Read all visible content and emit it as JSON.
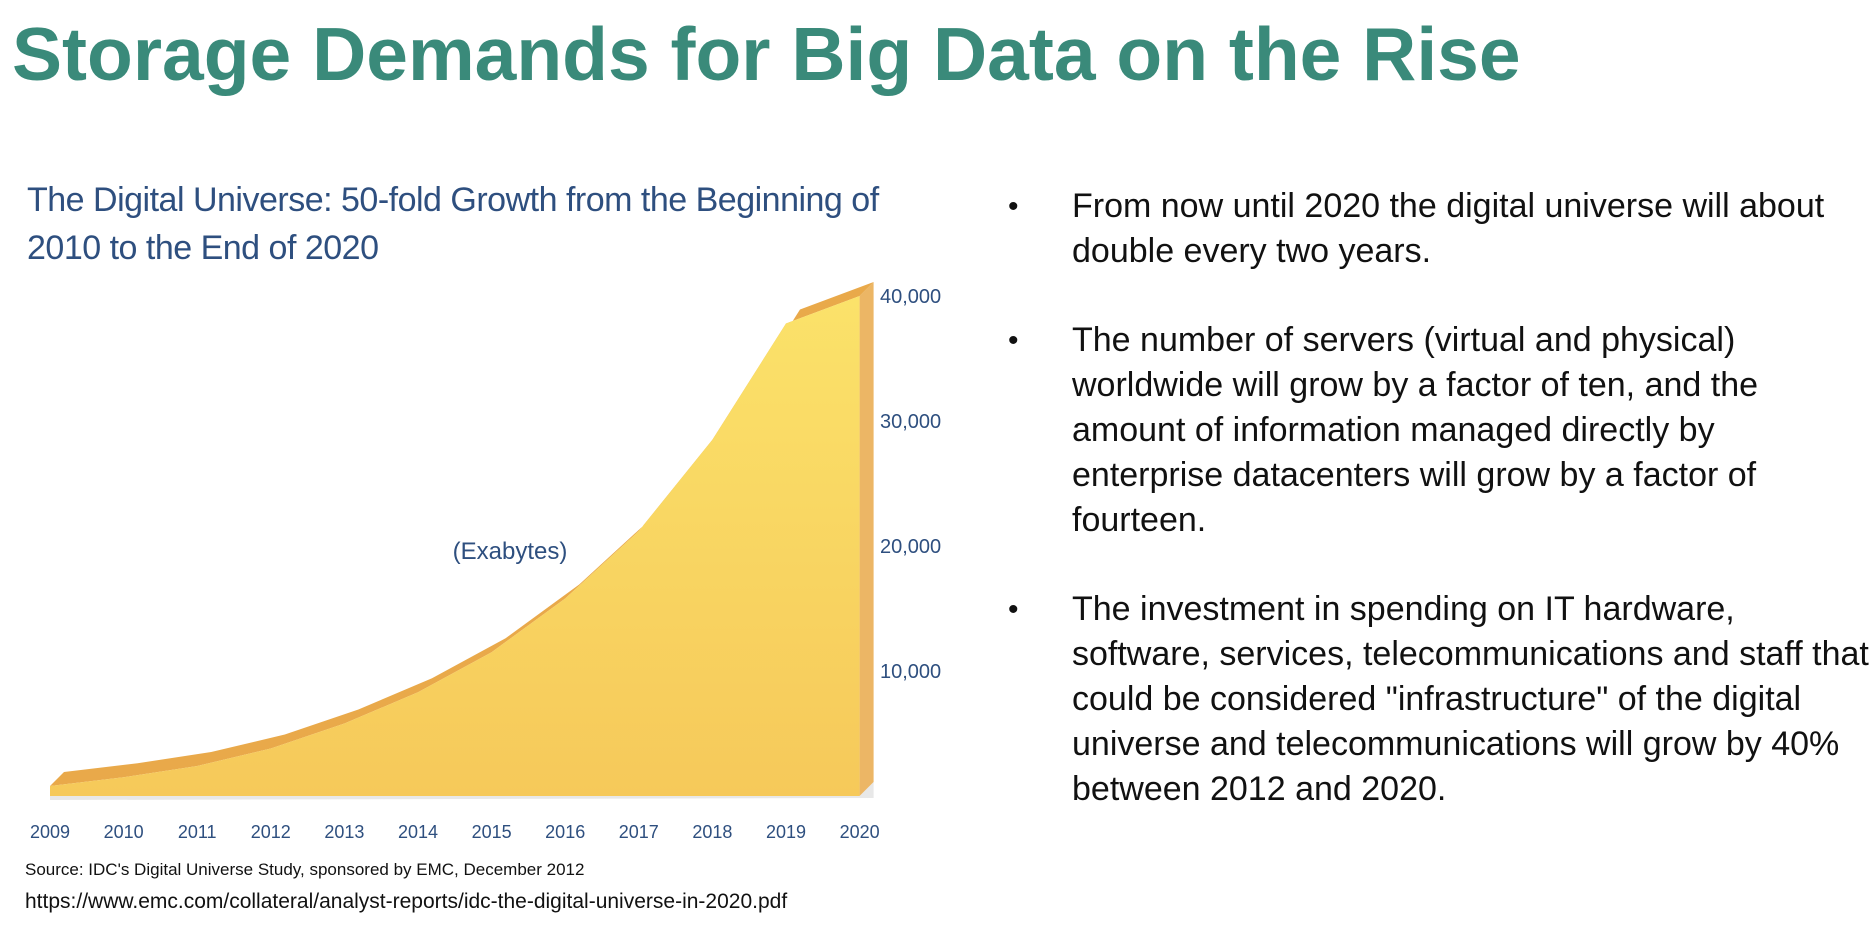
{
  "slide": {
    "title": "Storage Demands for Big Data on the Rise"
  },
  "chart_data": {
    "type": "area",
    "title": "The Digital Universe: 50-fold Growth from the Beginning of 2010 to the End of 2020",
    "unit_label": "(Exabytes)",
    "categories": [
      "2009",
      "2010",
      "2011",
      "2012",
      "2013",
      "2014",
      "2015",
      "2016",
      "2017",
      "2018",
      "2019",
      "2020"
    ],
    "values": [
      800,
      1500,
      2400,
      3800,
      5800,
      8300,
      11500,
      15800,
      21200,
      28500,
      37800,
      40000
    ],
    "y_ticks": [
      "10,000",
      "20,000",
      "30,000",
      "40,000"
    ],
    "y_tick_values": [
      10000,
      20000,
      30000,
      40000
    ],
    "ylim": [
      0,
      40000
    ],
    "legend": "none",
    "grid": false,
    "colors": {
      "area_top": "#fbe26a",
      "area_bottom": "#f6c95a",
      "ridge": "#e9a94a",
      "text": "#2e4f7f"
    }
  },
  "source": {
    "note": "Source: IDC's Digital Universe Study, sponsored by EMC, December 2012",
    "url": "https://www.emc.com/collateral/analyst-reports/idc-the-digital-universe-in-2020.pdf"
  },
  "bullet_symbol": "•",
  "bullets": [
    "From now until 2020 the digital universe will about double every two years.",
    "The number of servers (virtual and physical) worldwide will grow by a factor of ten, and the amount of information managed directly by enterprise datacenters will grow by a factor of fourteen.",
    "The investment in spending on IT hardware, software, services, telecommunications and staff that could be considered \"infrastructure\" of the digital universe and telecommunications will grow by 40% between 2012 and 2020."
  ]
}
